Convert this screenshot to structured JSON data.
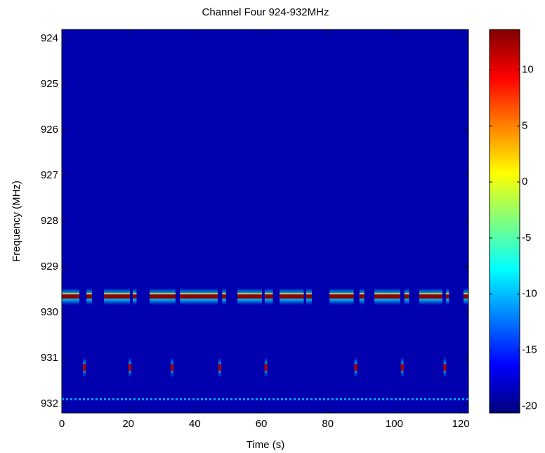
{
  "chart_data": {
    "type": "spectrogram",
    "title": "Channel Four 924-932MHz",
    "xlabel": "Time (s)",
    "ylabel": "Frequency (MHz)",
    "xlim": [
      0,
      122.3
    ],
    "xticks": [
      0,
      20,
      40,
      60,
      80,
      100,
      120
    ],
    "ylim": [
      923.8,
      932.2
    ],
    "y_reversed": true,
    "yticks": [
      924,
      925,
      926,
      927,
      928,
      929,
      930,
      931,
      932
    ],
    "colormap": "jet",
    "clim": [
      -20.6,
      13.6
    ],
    "cticks": [
      -20,
      -15,
      -10,
      -5,
      0,
      5,
      10
    ],
    "background": -19,
    "carrier": {
      "frequency": 929.65,
      "value": 13,
      "intervals": [
        [
          0,
          5.3
        ],
        [
          7.4,
          9.1
        ],
        [
          12.7,
          20.5
        ],
        [
          21.3,
          22.5
        ],
        [
          26.4,
          34.2
        ],
        [
          35.5,
          46.9
        ],
        [
          48.2,
          49.4
        ],
        [
          52.8,
          60.2
        ],
        [
          61,
          63.5
        ],
        [
          65.5,
          72.8
        ],
        [
          73.5,
          75.2
        ],
        [
          80.5,
          87.8
        ],
        [
          89.5,
          91
        ],
        [
          94,
          101.8
        ],
        [
          103,
          104.5
        ],
        [
          107.5,
          114.5
        ],
        [
          115.5,
          116.5
        ],
        [
          120.8,
          122.3
        ]
      ]
    },
    "pulses": {
      "frequency": 931.2,
      "value": 12,
      "times": [
        6.8,
        20.5,
        33.2,
        47.5,
        61.4,
        88.4,
        102.4,
        115.2
      ]
    },
    "floor_line": {
      "frequency": 931.9,
      "value": -11,
      "intervals": [
        [
          0,
          122.3
        ]
      ]
    }
  }
}
